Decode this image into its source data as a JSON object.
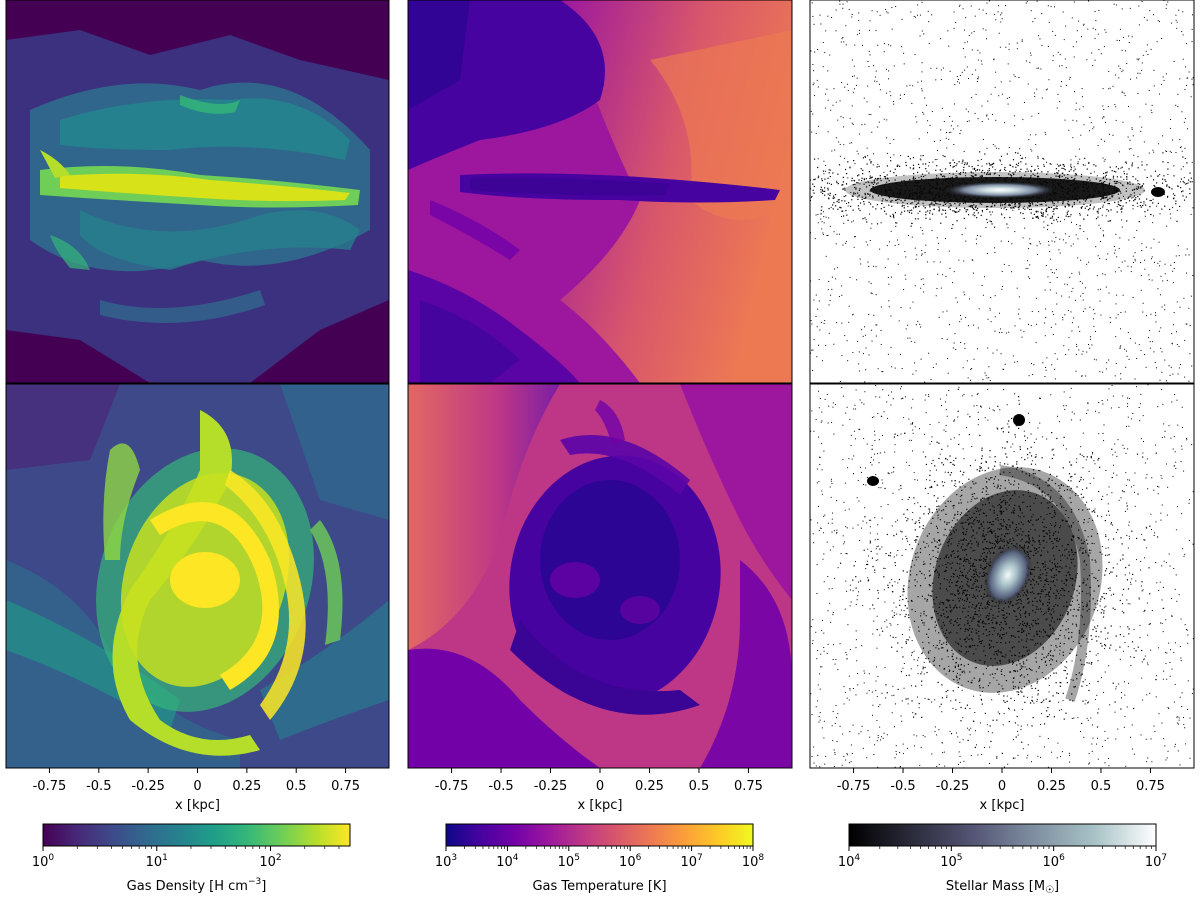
{
  "chart_data": [
    {
      "type": "heatmap",
      "quantity": "gas_density",
      "views": [
        "edge-on",
        "face-on"
      ],
      "xlabel": "x [kpc]",
      "x_ticks": [
        -0.75,
        -0.5,
        -0.25,
        0,
        0.25,
        0.5,
        0.75
      ],
      "x_tick_labels": [
        "-0.75",
        "-0.5",
        "-0.25",
        "0",
        "0.25",
        "0.5",
        "0.75"
      ],
      "xlim": [
        -0.97,
        0.97
      ],
      "colormap": "viridis",
      "colormap_stops": [
        "#440154",
        "#482878",
        "#3e4989",
        "#31688e",
        "#26828e",
        "#1f9e89",
        "#35b779",
        "#6ece58",
        "#b5de2b",
        "#fde725"
      ],
      "colorbar": {
        "scale": "log",
        "range": [
          1,
          500
        ],
        "tick_bases": [
          "10",
          "10",
          "10"
        ],
        "tick_exponents": [
          "0",
          "1",
          "2"
        ],
        "tick_values": [
          1,
          10,
          100
        ],
        "label": "Gas Density [H cm",
        "label_sup": "−3",
        "label_end": "]"
      }
    },
    {
      "type": "heatmap",
      "quantity": "gas_temperature",
      "views": [
        "edge-on",
        "face-on"
      ],
      "xlabel": "x [kpc]",
      "x_ticks": [
        -0.75,
        -0.5,
        -0.25,
        0,
        0.25,
        0.5,
        0.75
      ],
      "x_tick_labels": [
        "-0.75",
        "-0.5",
        "-0.25",
        "0",
        "0.25",
        "0.5",
        "0.75"
      ],
      "xlim": [
        -0.97,
        0.97
      ],
      "colormap": "plasma",
      "colormap_stops": [
        "#0d0887",
        "#46039f",
        "#7201a8",
        "#9c179e",
        "#bd3786",
        "#d8576b",
        "#ed7953",
        "#fb9f3a",
        "#fdca26",
        "#f0f921"
      ],
      "colorbar": {
        "scale": "log",
        "range": [
          1000,
          100000000
        ],
        "tick_bases": [
          "10",
          "10",
          "10",
          "10",
          "10",
          "10"
        ],
        "tick_exponents": [
          "3",
          "4",
          "5",
          "6",
          "7",
          "8"
        ],
        "tick_values": [
          1000,
          10000,
          100000,
          1000000,
          10000000,
          100000000
        ],
        "label": "Gas Temperature [K]",
        "label_sup": "",
        "label_end": ""
      }
    },
    {
      "type": "heatmap",
      "quantity": "stellar_mass",
      "views": [
        "edge-on",
        "face-on"
      ],
      "xlabel": "x [kpc]",
      "x_ticks": [
        -0.75,
        -0.5,
        -0.25,
        0,
        0.25,
        0.5,
        0.75
      ],
      "x_tick_labels": [
        "-0.75",
        "-0.5",
        "-0.25",
        "0",
        "0.25",
        "0.5",
        "0.75"
      ],
      "xlim": [
        -0.97,
        0.97
      ],
      "colormap": "bone",
      "colormap_stops": [
        "#000000",
        "#2a2a3a",
        "#545474",
        "#7e8ea0",
        "#a8c2c6",
        "#ffffff"
      ],
      "colorbar": {
        "scale": "log",
        "range": [
          10000,
          10000000
        ],
        "tick_bases": [
          "10",
          "10",
          "10",
          "10"
        ],
        "tick_exponents": [
          "4",
          "5",
          "6",
          "7"
        ],
        "tick_values": [
          10000,
          100000,
          1000000,
          10000000
        ],
        "label": "Stellar Mass [M",
        "label_sup": "",
        "label_sub": "☉",
        "label_end": "]"
      }
    }
  ]
}
